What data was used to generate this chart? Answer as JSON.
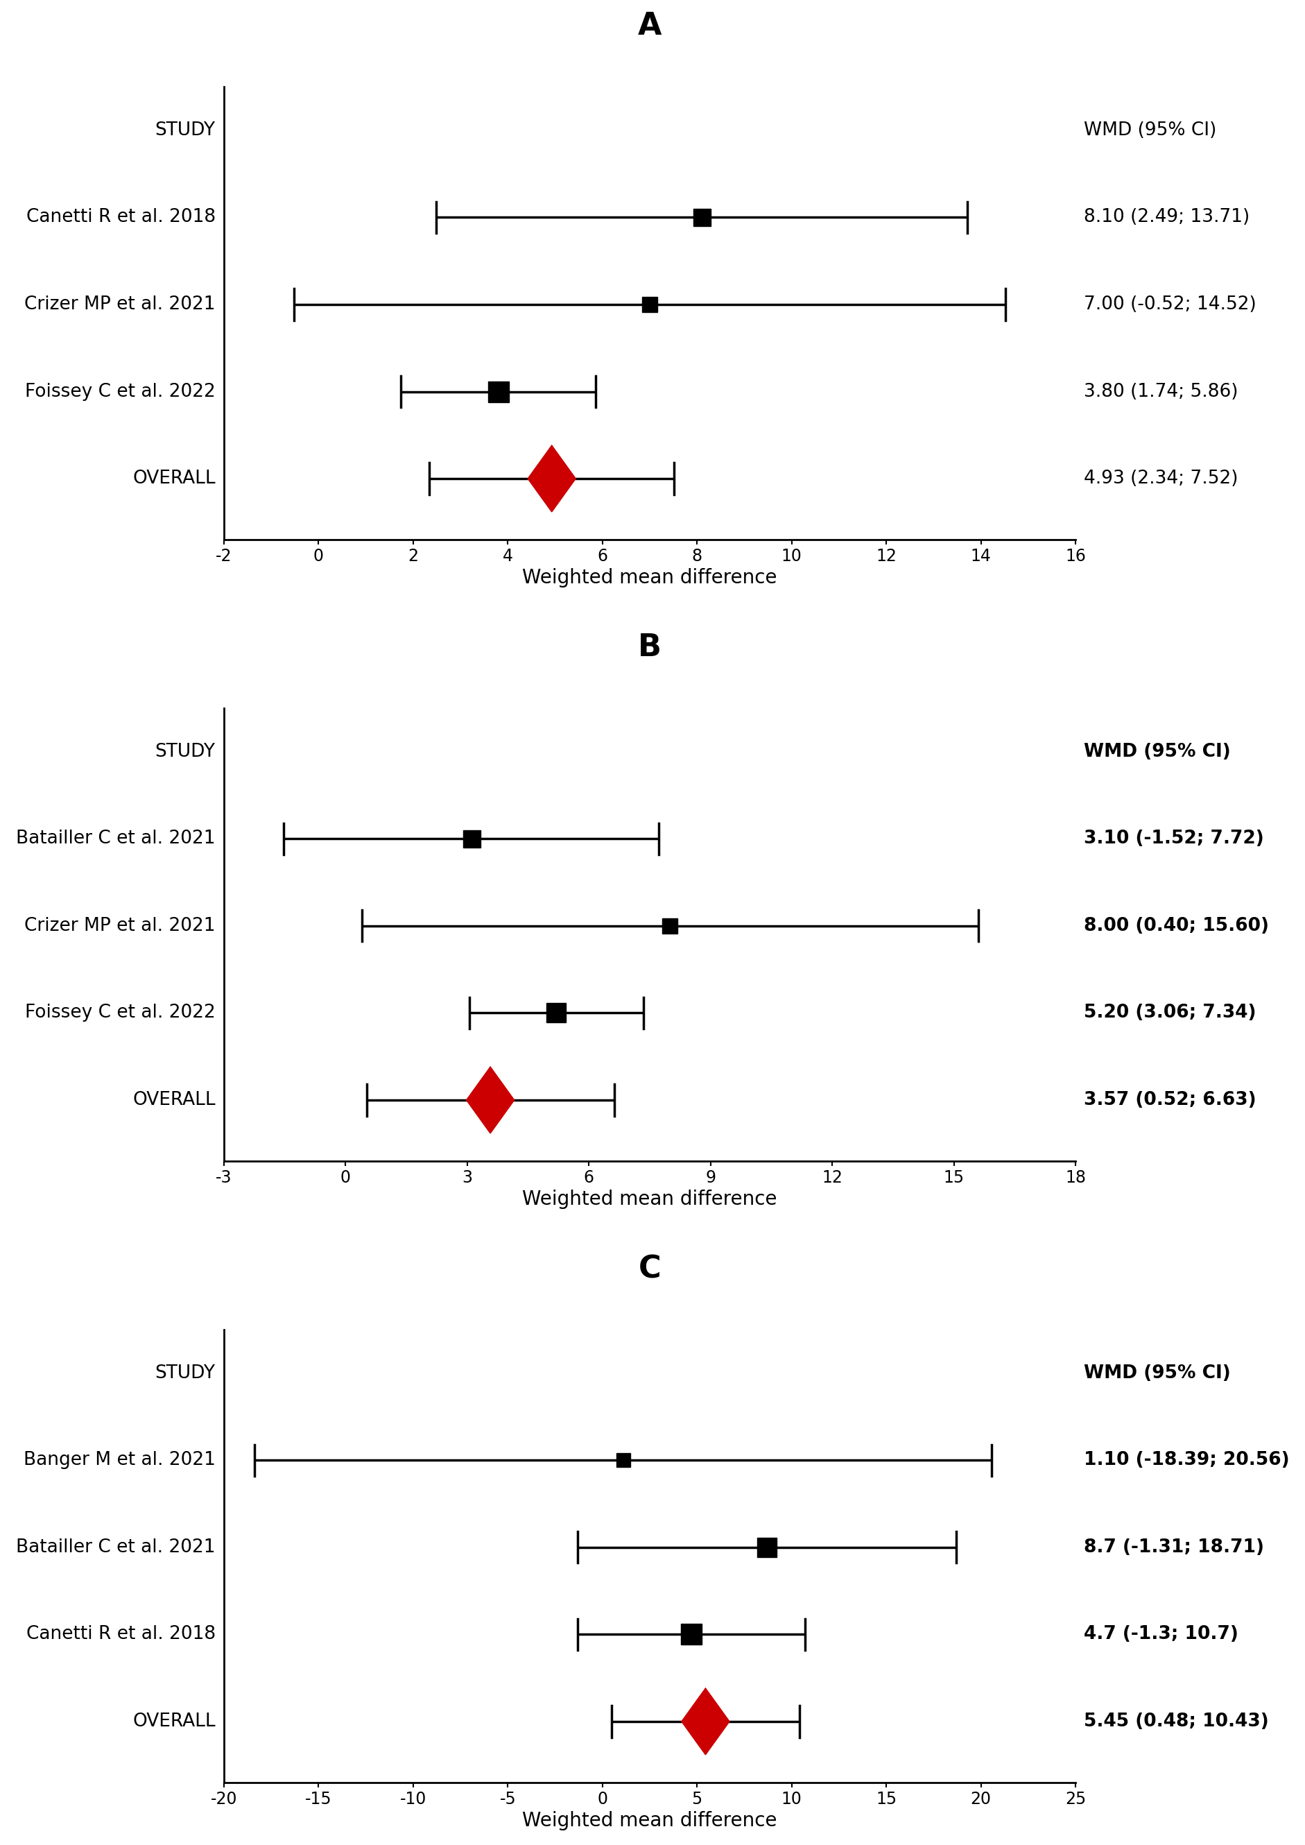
{
  "panels": [
    {
      "label": "A",
      "xlabel": "Weighted mean difference",
      "xlim": [
        -2,
        16
      ],
      "xticks": [
        -2,
        0,
        2,
        4,
        6,
        8,
        10,
        12,
        14,
        16
      ],
      "header_label": "STUDY",
      "header_wmd": "WMD (95% CI)",
      "studies": [
        {
          "name": "Canetti R et al. 2018",
          "mean": 8.1,
          "ci_low": 2.49,
          "ci_high": 13.71,
          "marker_size": 18,
          "wmd_text": "8.10 (2.49; 13.71)"
        },
        {
          "name": "Crizer MP et al. 2021",
          "mean": 7.0,
          "ci_low": -0.52,
          "ci_high": 14.52,
          "marker_size": 16,
          "wmd_text": "7.00 (-0.52; 14.52)"
        },
        {
          "name": "Foissey C et al. 2022",
          "mean": 3.8,
          "ci_low": 1.74,
          "ci_high": 5.86,
          "marker_size": 22,
          "wmd_text": "3.80 (1.74; 5.86)"
        }
      ],
      "overall": {
        "mean": 4.93,
        "ci_low": 2.34,
        "ci_high": 7.52,
        "wmd_text": "4.93 (2.34; 7.52)"
      },
      "wmd_bold": false
    },
    {
      "label": "B",
      "xlabel": "Weighted mean difference",
      "xlim": [
        -3,
        18
      ],
      "xticks": [
        -3,
        0,
        3,
        6,
        9,
        12,
        15,
        18
      ],
      "header_label": "STUDY",
      "header_wmd": "WMD (95% CI)",
      "studies": [
        {
          "name": "Batailler C et al. 2021",
          "mean": 3.1,
          "ci_low": -1.52,
          "ci_high": 7.72,
          "marker_size": 18,
          "wmd_text": "3.10 (-1.52; 7.72)"
        },
        {
          "name": "Crizer MP et al. 2021",
          "mean": 8.0,
          "ci_low": 0.4,
          "ci_high": 15.6,
          "marker_size": 16,
          "wmd_text": "8.00 (0.40; 15.60)"
        },
        {
          "name": "Foissey C et al. 2022",
          "mean": 5.2,
          "ci_low": 3.06,
          "ci_high": 7.34,
          "marker_size": 20,
          "wmd_text": "5.20 (3.06; 7.34)"
        }
      ],
      "overall": {
        "mean": 3.57,
        "ci_low": 0.52,
        "ci_high": 6.63,
        "wmd_text": "3.57 (0.52; 6.63)"
      },
      "wmd_bold": true
    },
    {
      "label": "C",
      "xlabel": "Weighted mean difference",
      "xlim": [
        -20,
        25
      ],
      "xticks": [
        -20,
        -15,
        -10,
        -5,
        0,
        5,
        10,
        15,
        20,
        25
      ],
      "header_label": "STUDY",
      "header_wmd": "WMD (95% CI)",
      "studies": [
        {
          "name": "Banger M et al. 2021",
          "mean": 1.1,
          "ci_low": -18.39,
          "ci_high": 20.56,
          "marker_size": 14,
          "wmd_text": "1.10 (-18.39; 20.56)"
        },
        {
          "name": "Batailler C et al. 2021",
          "mean": 8.7,
          "ci_low": -1.31,
          "ci_high": 18.71,
          "marker_size": 20,
          "wmd_text": "8.7 (-1.31; 18.71)"
        },
        {
          "name": "Canetti R et al. 2018",
          "mean": 4.7,
          "ci_low": -1.3,
          "ci_high": 10.7,
          "marker_size": 22,
          "wmd_text": "4.7 (-1.3; 10.7)"
        }
      ],
      "overall": {
        "mean": 5.45,
        "ci_low": 0.48,
        "ci_high": 10.43,
        "wmd_text": "5.45 (0.48; 10.43)"
      },
      "wmd_bold": true
    }
  ],
  "square_color": "#000000",
  "diamond_color": "#cc0000",
  "line_color": "#000000",
  "background_color": "#ffffff",
  "panel_label_fontsize": 32,
  "study_fontsize": 19,
  "wmd_fontsize": 19,
  "tick_fontsize": 17,
  "xlabel_fontsize": 20
}
